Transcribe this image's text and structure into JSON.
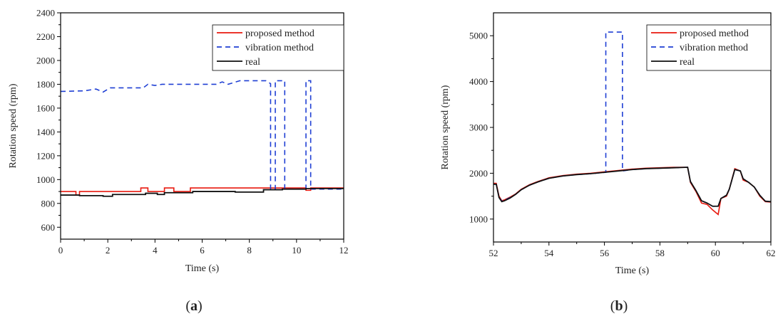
{
  "chart_data": [
    {
      "type": "line",
      "panel_label": "(a)",
      "panel_label_parts": [
        "(",
        "a",
        ")"
      ],
      "xlabel": "Time (s)",
      "ylabel": "Rotation speed (rpm)",
      "xlim": [
        0,
        12
      ],
      "ylim": [
        500,
        2400
      ],
      "xticks": [
        "0",
        "2",
        "4",
        "6",
        "8",
        "10",
        "12"
      ],
      "yticks": [
        "600",
        "800",
        "1000",
        "1200",
        "1400",
        "1600",
        "1800",
        "2000",
        "2200",
        "2400"
      ],
      "grid": false,
      "legend_position": "top-right",
      "series": [
        {
          "name": "proposed method",
          "color": "#e8190f",
          "style": "solid",
          "x": [
            0,
            0.65,
            0.65,
            0.8,
            0.8,
            3.4,
            3.4,
            3.7,
            3.7,
            4.4,
            4.4,
            4.8,
            4.8,
            5.5,
            5.5,
            6.1,
            6.1,
            10.4,
            10.4,
            10.6,
            10.6,
            12
          ],
          "y": [
            900,
            900,
            870,
            870,
            900,
            900,
            930,
            930,
            900,
            900,
            930,
            930,
            900,
            900,
            930,
            930,
            930,
            930,
            910,
            910,
            930,
            930
          ]
        },
        {
          "name": "vibration method",
          "color": "#1f3fd4",
          "style": "dashed",
          "x": [
            0,
            1.0,
            1.5,
            1.8,
            2.1,
            3.5,
            3.7,
            4.0,
            4.3,
            6.6,
            6.85,
            7.1,
            7.6,
            8.7,
            8.9,
            8.9,
            9.1,
            9.1,
            9.5,
            9.5,
            10.4,
            10.4,
            10.6,
            10.6,
            12
          ],
          "y": [
            1740,
            1745,
            1760,
            1735,
            1770,
            1770,
            1800,
            1790,
            1800,
            1800,
            1820,
            1800,
            1830,
            1830,
            1805,
            920,
            920,
            1830,
            1830,
            920,
            920,
            1830,
            1830,
            920,
            920
          ]
        },
        {
          "name": "real",
          "color": "#111111",
          "style": "solid",
          "x": [
            0,
            0.8,
            0.8,
            1.8,
            1.8,
            2.2,
            2.2,
            3.6,
            3.6,
            4.1,
            4.1,
            4.4,
            4.4,
            5.6,
            5.6,
            7.4,
            7.4,
            8.6,
            8.6,
            9.4,
            9.4,
            10.4,
            10.4,
            12
          ],
          "y": [
            870,
            870,
            865,
            865,
            860,
            860,
            875,
            875,
            885,
            885,
            875,
            875,
            890,
            890,
            900,
            900,
            895,
            895,
            915,
            915,
            920,
            920,
            925,
            925
          ]
        }
      ]
    },
    {
      "type": "line",
      "panel_label": "(b)",
      "panel_label_parts": [
        "(",
        "b",
        ")"
      ],
      "xlabel": "Time (s)",
      "ylabel": "Rotation speed (rpm)",
      "xlim": [
        52,
        62
      ],
      "ylim": [
        500,
        5500
      ],
      "xticks": [
        "52",
        "54",
        "56",
        "58",
        "60",
        "62"
      ],
      "yticks": [
        "1000",
        "2000",
        "3000",
        "4000",
        "5000"
      ],
      "grid": false,
      "legend_position": "top-right",
      "series": [
        {
          "name": "proposed method",
          "color": "#e8190f",
          "style": "solid",
          "x": [
            52.0,
            52.1,
            52.2,
            52.3,
            52.4,
            52.6,
            52.8,
            53.0,
            53.3,
            53.6,
            54.0,
            54.5,
            55.0,
            55.5,
            56.0,
            56.5,
            57.0,
            57.5,
            58.0,
            58.5,
            59.0,
            59.1,
            59.3,
            59.5,
            59.7,
            59.9,
            60.1,
            60.2,
            60.4,
            60.5,
            60.7,
            60.9,
            61.0,
            61.2,
            61.4,
            61.6,
            61.8,
            62.0
          ],
          "y": [
            1780,
            1780,
            1500,
            1400,
            1420,
            1480,
            1550,
            1650,
            1750,
            1820,
            1900,
            1950,
            1980,
            2000,
            2030,
            2060,
            2090,
            2110,
            2120,
            2130,
            2130,
            1800,
            1600,
            1350,
            1320,
            1200,
            1100,
            1450,
            1500,
            1650,
            2100,
            2050,
            1850,
            1800,
            1700,
            1500,
            1380,
            1370
          ]
        },
        {
          "name": "vibration method",
          "color": "#1f3fd4",
          "style": "dashed",
          "x": [
            52.0,
            52.1,
            52.2,
            52.3,
            52.4,
            52.6,
            52.8,
            53.0,
            53.3,
            53.6,
            54.0,
            54.5,
            55.0,
            55.5,
            56.05,
            56.05,
            56.65,
            56.65,
            57.0,
            57.5,
            58.0,
            58.5,
            59.0,
            59.1,
            59.3,
            59.5,
            59.7,
            59.9,
            60.1,
            60.2,
            60.4,
            60.5,
            60.7,
            60.9,
            61.0,
            61.2,
            61.4,
            61.6,
            61.8,
            62.0
          ],
          "y": [
            1760,
            1760,
            1480,
            1390,
            1410,
            1470,
            1540,
            1640,
            1740,
            1810,
            1890,
            1940,
            1970,
            1990,
            2020,
            5080,
            5080,
            2050,
            2080,
            2100,
            2110,
            2120,
            2130,
            1820,
            1620,
            1400,
            1350,
            1280,
            1280,
            1450,
            1520,
            1650,
            2080,
            2050,
            1880,
            1800,
            1700,
            1520,
            1390,
            1380
          ]
        },
        {
          "name": "real",
          "color": "#111111",
          "style": "solid",
          "x": [
            52.0,
            52.1,
            52.2,
            52.3,
            52.4,
            52.6,
            52.8,
            53.0,
            53.3,
            53.6,
            54.0,
            54.5,
            55.0,
            55.5,
            56.0,
            56.5,
            57.0,
            57.5,
            58.0,
            58.5,
            59.0,
            59.1,
            59.3,
            59.5,
            59.7,
            59.9,
            60.1,
            60.2,
            60.4,
            60.5,
            60.7,
            60.9,
            61.0,
            61.2,
            61.4,
            61.6,
            61.8,
            62.0
          ],
          "y": [
            1760,
            1760,
            1470,
            1380,
            1400,
            1460,
            1540,
            1640,
            1740,
            1810,
            1890,
            1940,
            1970,
            1990,
            2020,
            2050,
            2080,
            2100,
            2110,
            2120,
            2130,
            1820,
            1620,
            1400,
            1350,
            1280,
            1280,
            1450,
            1520,
            1650,
            2080,
            2050,
            1880,
            1800,
            1700,
            1520,
            1390,
            1380
          ]
        }
      ]
    }
  ]
}
